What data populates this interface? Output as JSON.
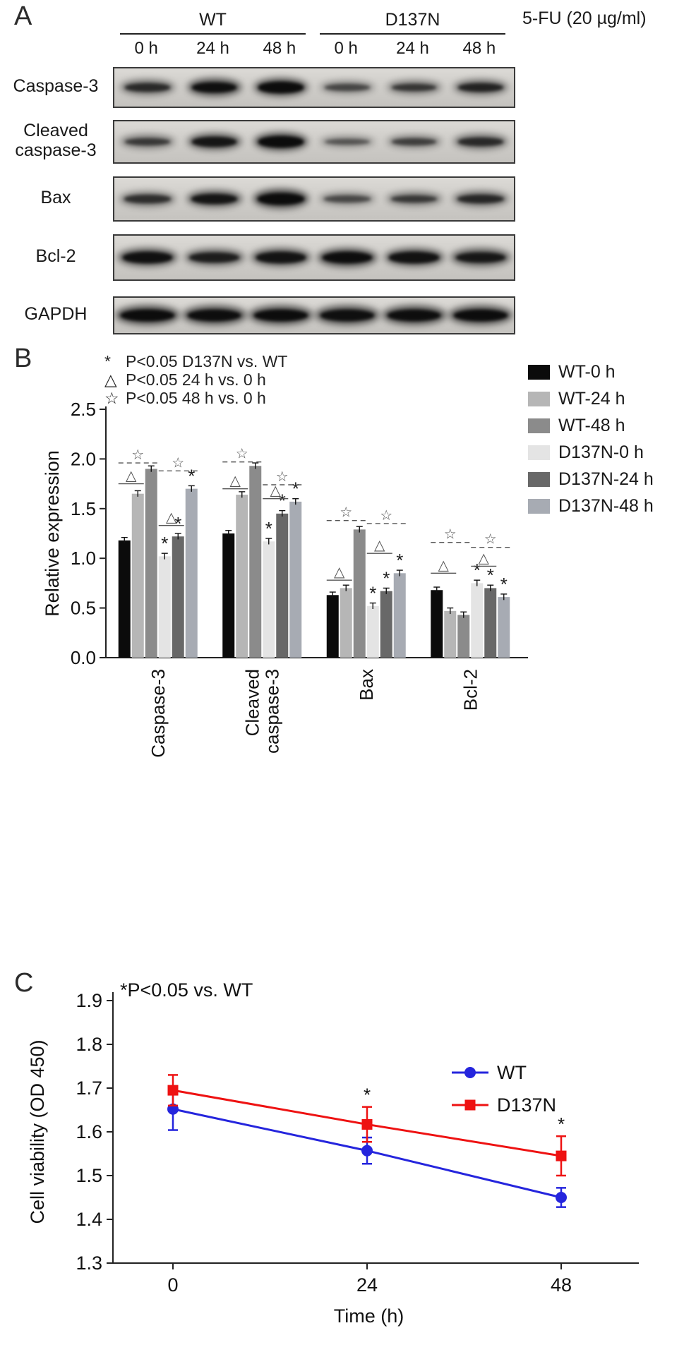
{
  "panelA": {
    "label": "A",
    "treatment_label": "5-FU (20 µg/ml)",
    "groups": [
      {
        "name": "WT",
        "timepoints": [
          "0 h",
          "24 h",
          "48 h"
        ]
      },
      {
        "name": "D137N",
        "timepoints": [
          "0 h",
          "24 h",
          "48 h"
        ]
      }
    ],
    "blots": [
      {
        "label": "Caspase-3",
        "bands": [
          0.55,
          0.88,
          0.92,
          0.32,
          0.45,
          0.62
        ]
      },
      {
        "label": "Cleaved caspase-3",
        "label_lines": [
          "Cleaved",
          "caspase-3"
        ],
        "bands": [
          0.42,
          0.78,
          0.95,
          0.22,
          0.38,
          0.55
        ]
      },
      {
        "label": "Bax",
        "bands": [
          0.5,
          0.78,
          0.97,
          0.3,
          0.42,
          0.58
        ]
      },
      {
        "label": "Bcl-2",
        "bands": [
          0.85,
          0.68,
          0.8,
          0.9,
          0.82,
          0.75
        ]
      },
      {
        "label": "GAPDH",
        "bands": [
          0.95,
          0.9,
          0.92,
          0.88,
          0.9,
          0.92
        ]
      }
    ]
  },
  "panelB": {
    "label": "B",
    "sig_notes": [
      {
        "symbol": "*",
        "text": "P<0.05 D137N vs. WT"
      },
      {
        "symbol": "△",
        "text": "P<0.05 24 h vs. 0 h"
      },
      {
        "symbol": "☆",
        "text": "P<0.05 48 h vs. 0 h"
      }
    ]
  },
  "panelC": {
    "label": "C"
  },
  "chart_data": [
    {
      "type": "bar",
      "title": "",
      "xlabel": "",
      "ylabel": "Relative expression",
      "ylim": [
        0,
        2.5
      ],
      "yticks": [
        0,
        0.5,
        1,
        1.5,
        2,
        2.5
      ],
      "grid": false,
      "legend_position": "right",
      "categories": [
        "Caspase-3",
        "Cleaved caspase-3",
        "Bax",
        "Bcl-2"
      ],
      "category_lines": [
        [
          "Caspase-3"
        ],
        [
          "Cleaved",
          "caspase-3"
        ],
        [
          "Bax"
        ],
        [
          "Bcl-2"
        ]
      ],
      "series": [
        {
          "name": "WT-0 h",
          "color": "#0b0b0b",
          "values": [
            1.18,
            1.25,
            0.63,
            0.68
          ]
        },
        {
          "name": "WT-24 h",
          "color": "#b6b6b6",
          "values": [
            1.65,
            1.64,
            0.7,
            0.47
          ]
        },
        {
          "name": "WT-48 h",
          "color": "#8b8b8b",
          "values": [
            1.9,
            1.93,
            1.29,
            0.43
          ]
        },
        {
          "name": "D137N-0 h",
          "color": "#e4e4e4",
          "values": [
            1.02,
            1.17,
            0.52,
            0.75
          ]
        },
        {
          "name": "D137N-24 h",
          "color": "#686868",
          "values": [
            1.22,
            1.45,
            0.67,
            0.7
          ]
        },
        {
          "name": "D137N-48 h",
          "color": "#a7abb3",
          "values": [
            1.7,
            1.57,
            0.85,
            0.61
          ]
        }
      ],
      "error": 0.03,
      "asterisks": [
        [
          3,
          4,
          5
        ],
        [
          3,
          4,
          5
        ],
        [
          3,
          4,
          5
        ],
        [
          3,
          4,
          5
        ]
      ],
      "comparisons": [
        {
          "wt_tri": 1.75,
          "wt_star": 1.96,
          "mut_tri": 1.33,
          "mut_star": 1.88
        },
        {
          "wt_tri": 1.7,
          "wt_star": 1.97,
          "mut_tri": 1.6,
          "mut_star": 1.74
        },
        {
          "wt_tri": 0.78,
          "wt_star": 1.38,
          "mut_tri": 1.05,
          "mut_star": 1.35
        },
        {
          "wt_tri": 0.85,
          "wt_star": 1.16,
          "mut_tri": 0.92,
          "mut_star": 1.11
        }
      ]
    },
    {
      "type": "line",
      "title": "",
      "annotation": "*P<0.05 vs. WT",
      "xlabel": "Time (h)",
      "ylabel": "Cell viability (OD 450)",
      "x": [
        0,
        24,
        48
      ],
      "xticklabels": [
        "0",
        "24",
        "48"
      ],
      "ylim": [
        1.3,
        1.9
      ],
      "yticks": [
        1.3,
        1.4,
        1.5,
        1.6,
        1.7,
        1.8,
        1.9
      ],
      "legend_position": "top-right",
      "series": [
        {
          "name": "WT",
          "marker": "circle",
          "color": "#2525dd",
          "values": [
            1.652,
            1.557,
            1.45
          ],
          "errors": [
            0.048,
            0.03,
            0.022
          ]
        },
        {
          "name": "D137N",
          "marker": "square",
          "color": "#ee1212",
          "values": [
            1.695,
            1.617,
            1.545
          ],
          "errors": [
            0.035,
            0.04,
            0.045
          ]
        }
      ],
      "asterisk_x": [
        24,
        48
      ]
    }
  ]
}
